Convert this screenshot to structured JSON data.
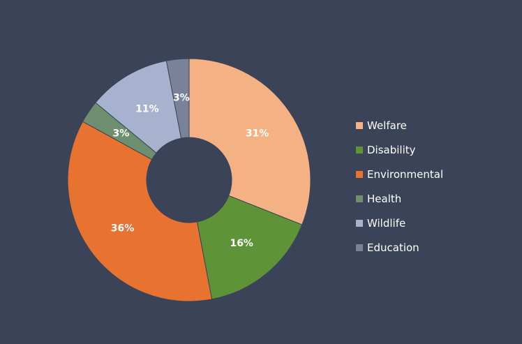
{
  "chart_data": {
    "type": "pie",
    "donut": true,
    "title": "",
    "legend_position": "right",
    "categories": [
      "Welfare",
      "Disability",
      "Environmental",
      "Health",
      "Wildlife",
      "Education"
    ],
    "values": [
      31,
      16,
      36,
      3,
      11,
      3
    ],
    "labels": [
      "31%",
      "16%",
      "36%",
      "3%",
      "11%",
      "3%"
    ],
    "colors": [
      "#f4b183",
      "#5e9437",
      "#e8722f",
      "#6e8f6f",
      "#a7b2ce",
      "#7a8299"
    ]
  }
}
